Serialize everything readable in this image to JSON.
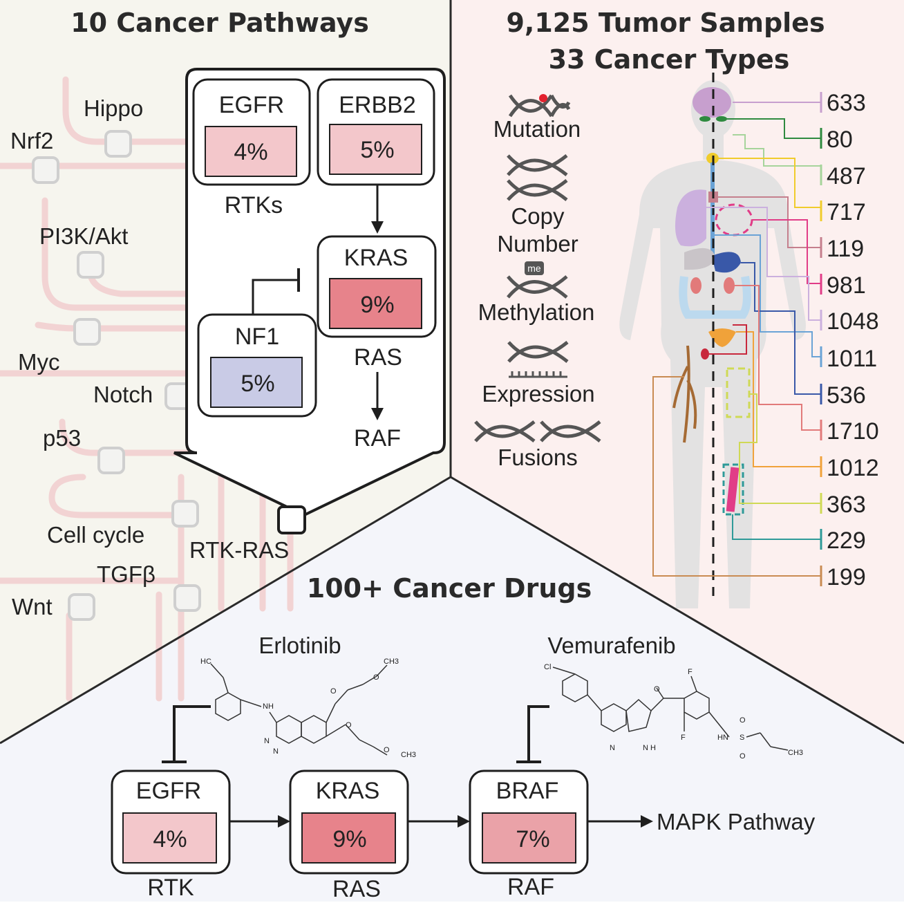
{
  "colors": {
    "left_bg": "#f6f5ee",
    "right_bg": "#fcf0ef",
    "bottom_bg": "#f4f5fa",
    "divider": "#2a2a2a",
    "track": "#f2d3d3",
    "node": "#cfcfcf",
    "light_red": "#f3c7cb",
    "mid_red": "#eaa2a8",
    "dark_red": "#e7838b",
    "blue_fill": "#c9cbe6",
    "body": "#e3e2e2"
  },
  "pathways": {
    "title": "10 Cancer Pathways",
    "labels": [
      "Hippo",
      "Nrf2",
      "PI3K/Akt",
      "Myc",
      "Notch",
      "p53",
      "Cell cycle",
      "TGFβ",
      "Wnt",
      "RTK-RAS"
    ],
    "zoom": {
      "egfr": {
        "gene": "EGFR",
        "pct": "4%"
      },
      "erbb2": {
        "gene": "ERBB2",
        "pct": "5%"
      },
      "kras": {
        "gene": "KRAS",
        "pct": "9%"
      },
      "nf1": {
        "gene": "NF1",
        "pct": "5%"
      },
      "rtks_label": "RTKs",
      "ras_label": "RAS",
      "raf_label": "RAF"
    }
  },
  "samples": {
    "title_line1": "9,125 Tumor Samples",
    "title_line2": "33 Cancer Types",
    "data_types": [
      "Mutation",
      "Copy",
      "Number",
      "me",
      "Methylation",
      "Expression",
      "Fusions"
    ],
    "counts": [
      {
        "value": "633",
        "color": "#c79fce"
      },
      {
        "value": "80",
        "color": "#2e8a3f"
      },
      {
        "value": "487",
        "color": "#a6d49b"
      },
      {
        "value": "717",
        "color": "#f0cc2c"
      },
      {
        "value": "119",
        "color": "#c57f8d"
      },
      {
        "value": "981",
        "color": "#e13c87"
      },
      {
        "value": "1048",
        "color": "#cbb0de"
      },
      {
        "value": "1011",
        "color": "#6aa3d6"
      },
      {
        "value": "536",
        "color": "#3958a8"
      },
      {
        "value": "1710",
        "color": "#e27a7a"
      },
      {
        "value": "1012",
        "color": "#f0a23a"
      },
      {
        "value": "363",
        "color": "#cfd955"
      },
      {
        "value": "229",
        "color": "#2e9a98"
      },
      {
        "value": "199",
        "color": "#c98b52"
      }
    ]
  },
  "drugs": {
    "title": "100+ Cancer Drugs",
    "drug1": "Erlotinib",
    "drug2": "Vemurafenib",
    "boxes": [
      {
        "gene": "EGFR",
        "pct": "4%",
        "label": "RTK"
      },
      {
        "gene": "KRAS",
        "pct": "9%",
        "label": "RAS"
      },
      {
        "gene": "BRAF",
        "pct": "7%",
        "label": "RAF"
      }
    ],
    "pathway": "MAPK Pathway",
    "chem": {
      "erl_hc": "HC",
      "erl_nh": "NH",
      "erl_n1": "N",
      "erl_n2": "N",
      "erl_o1": "O",
      "erl_o2": "O",
      "erl_o3": "O",
      "erl_o4": "O",
      "erl_ch3a": "CH3",
      "erl_ch3b": "CH3",
      "vem_cl": "Cl",
      "vem_o": "O",
      "vem_f1": "F",
      "vem_f2": "F",
      "vem_n": "N",
      "vem_nh": "N H",
      "vem_hn": "HN",
      "vem_s": "S",
      "vem_so1": "O",
      "vem_so2": "O",
      "vem_ch3": "CH3"
    }
  }
}
